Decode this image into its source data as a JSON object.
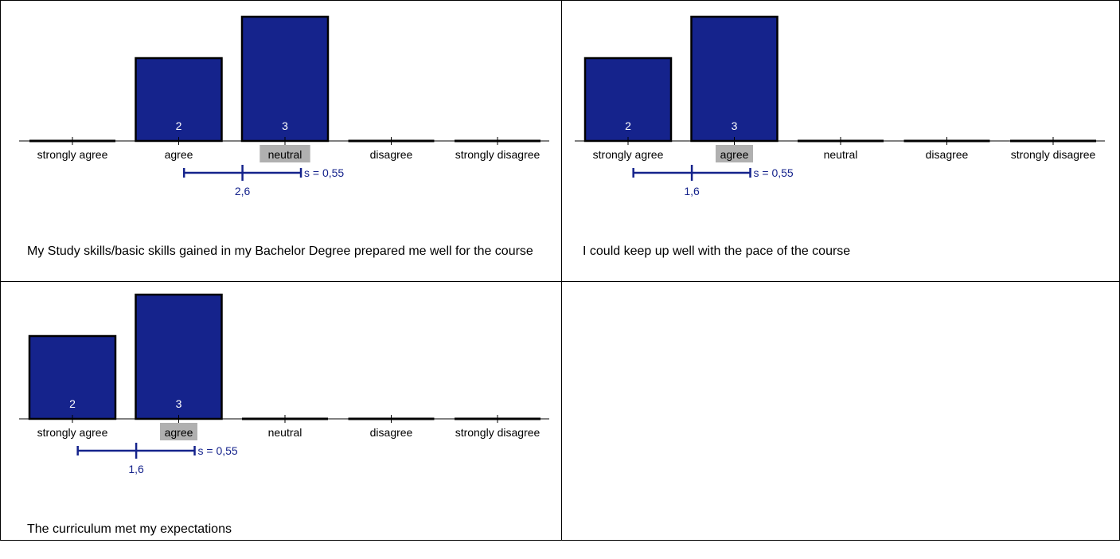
{
  "colors": {
    "bar": "#15238c",
    "mean_line": "#15238c",
    "highlight": "#b0b0b0",
    "grid": "#000000"
  },
  "categories": [
    "strongly agree",
    "agree",
    "neutral",
    "disagree",
    "strongly disagree"
  ],
  "chart_data": [
    {
      "type": "bar",
      "title": "My Study skills/basic skills gained in my Bachelor Degree prepared me well for the course",
      "categories": [
        "strongly agree",
        "agree",
        "neutral",
        "disagree",
        "strongly disagree"
      ],
      "values": [
        0,
        2,
        3,
        0,
        0
      ],
      "data_labels": [
        "",
        "2",
        "3",
        "",
        ""
      ],
      "highlight_category": "neutral",
      "mean": 2.6,
      "mean_label": "2,6",
      "sd": 0.55,
      "sd_label": "s = 0,55",
      "ylim": [
        0,
        3
      ]
    },
    {
      "type": "bar",
      "title": "I could keep up well with the pace of the course",
      "categories": [
        "strongly agree",
        "agree",
        "neutral",
        "disagree",
        "strongly disagree"
      ],
      "values": [
        2,
        3,
        0,
        0,
        0
      ],
      "data_labels": [
        "2",
        "3",
        "",
        "",
        ""
      ],
      "highlight_category": "agree",
      "mean": 1.6,
      "mean_label": "1,6",
      "sd": 0.55,
      "sd_label": "s = 0,55",
      "ylim": [
        0,
        3
      ]
    },
    {
      "type": "bar",
      "title": "The curriculum met my expectations",
      "categories": [
        "strongly agree",
        "agree",
        "neutral",
        "disagree",
        "strongly disagree"
      ],
      "values": [
        2,
        3,
        0,
        0,
        0
      ],
      "data_labels": [
        "2",
        "3",
        "",
        "",
        ""
      ],
      "highlight_category": "agree",
      "mean": 1.6,
      "mean_label": "1,6",
      "sd": 0.55,
      "sd_label": "s = 0,55",
      "ylim": [
        0,
        3
      ]
    }
  ]
}
